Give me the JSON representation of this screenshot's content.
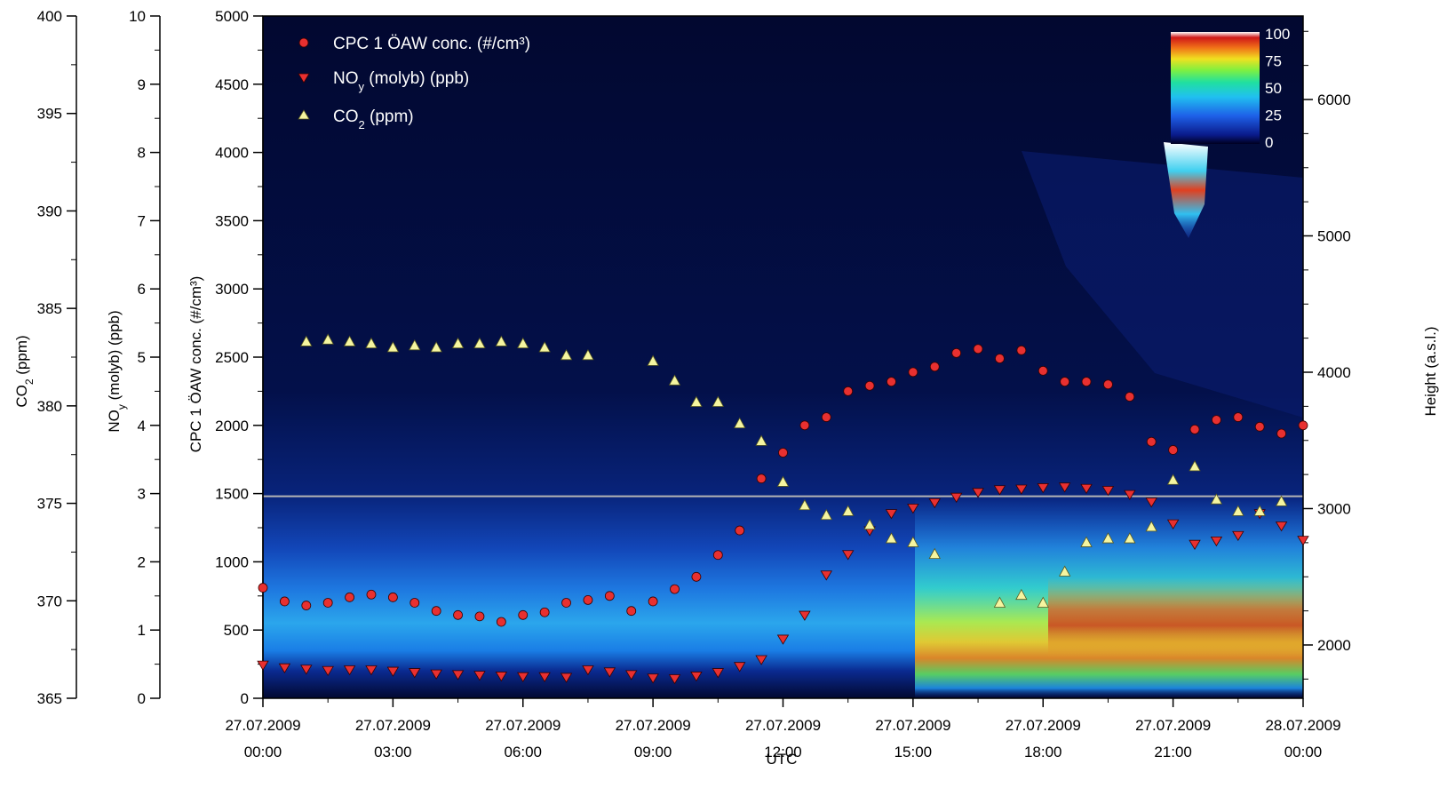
{
  "chart_data": {
    "type": "scatter",
    "x_ticks": [
      {
        "date": "27.07.2009",
        "time": "00:00"
      },
      {
        "date": "27.07.2009",
        "time": "03:00"
      },
      {
        "date": "27.07.2009",
        "time": "06:00"
      },
      {
        "date": "27.07.2009",
        "time": "09:00"
      },
      {
        "date": "27.07.2009",
        "time": "12:00"
      },
      {
        "date": "27.07.2009",
        "time": "15:00"
      },
      {
        "date": "27.07.2009",
        "time": "18:00"
      },
      {
        "date": "27.07.2009",
        "time": "21:00"
      },
      {
        "date": "28.07.2009",
        "time": "00:00"
      }
    ],
    "xlabel": "UTC",
    "x_unit": "hours",
    "xlim": [
      0,
      24
    ],
    "axes": {
      "co2": {
        "label": "CO2 (ppm)",
        "ylim": [
          365,
          400
        ],
        "ticks": [
          365,
          370,
          375,
          380,
          385,
          390,
          395,
          400
        ]
      },
      "noy": {
        "label": "NOy (molyb) (ppb)",
        "ylim": [
          0,
          10
        ],
        "ticks": [
          0,
          1,
          2,
          3,
          4,
          5,
          6,
          7,
          8,
          9,
          10
        ]
      },
      "cpc": {
        "label": "CPC 1 ÖAW conc. (#/cm³)",
        "ylim": [
          0,
          5000
        ],
        "ticks": [
          0,
          500,
          1000,
          1500,
          2000,
          2500,
          3000,
          3500,
          4000,
          4500,
          5000
        ]
      },
      "height": {
        "label": "Height (a.s.l.)",
        "ticks": [
          2000,
          3000,
          4000,
          5000,
          6000
        ]
      }
    },
    "reference_line": {
      "axis": "height",
      "value": 3090
    },
    "legend_position": "top-left",
    "colorbar": {
      "ticks": [
        0,
        25,
        50,
        75,
        100
      ],
      "position": "top-right"
    },
    "series": [
      {
        "name": "CPC 1 ÖAW conc. (#/cm³)",
        "axis": "cpc",
        "marker": "circle",
        "color": "#e83030",
        "x": [
          0,
          0.5,
          1,
          1.5,
          2,
          2.5,
          3,
          3.5,
          4,
          4.5,
          5,
          5.5,
          6,
          6.5,
          7,
          7.5,
          8,
          8.5,
          9,
          9.5,
          10,
          10.5,
          11,
          11.5,
          12,
          12.5,
          13,
          13.5,
          14,
          14.5,
          15,
          15.5,
          16,
          16.5,
          17,
          17.5,
          18,
          18.5,
          19,
          19.5,
          20,
          20.5,
          21,
          21.5,
          22,
          22.5,
          23,
          23.5,
          24
        ],
        "y": [
          810,
          710,
          680,
          700,
          740,
          760,
          740,
          700,
          640,
          610,
          600,
          560,
          610,
          630,
          700,
          720,
          750,
          640,
          710,
          800,
          890,
          1050,
          1230,
          1610,
          1800,
          2000,
          2060,
          2250,
          2290,
          2320,
          2390,
          2430,
          2530,
          2560,
          2490,
          2550,
          2400,
          2320,
          2320,
          2300,
          2210,
          1880,
          1820,
          1970,
          2040,
          2060,
          1990,
          1940,
          2000
        ]
      },
      {
        "name": "NOy (molyb) (ppb)",
        "axis": "noy",
        "marker": "triangle-down",
        "color": "#e83030",
        "x": [
          0,
          0.5,
          1,
          1.5,
          2,
          2.5,
          3,
          3.5,
          4,
          4.5,
          5,
          5.5,
          6,
          6.5,
          7,
          7.5,
          8,
          8.5,
          9,
          9.5,
          10,
          10.5,
          11,
          11.5,
          12,
          12.5,
          13,
          13.5,
          14,
          14.5,
          15,
          15.5,
          16,
          16.5,
          17,
          17.5,
          18,
          18.5,
          19,
          19.5,
          20,
          20.5,
          21,
          21.5,
          22,
          22.5,
          23,
          23.5,
          24
        ],
        "y": [
          0.48,
          0.44,
          0.42,
          0.4,
          0.41,
          0.41,
          0.39,
          0.37,
          0.35,
          0.34,
          0.33,
          0.32,
          0.31,
          0.31,
          0.3,
          0.41,
          0.38,
          0.34,
          0.29,
          0.28,
          0.32,
          0.37,
          0.46,
          0.56,
          0.86,
          1.21,
          1.8,
          2.1,
          2.45,
          2.7,
          2.78,
          2.86,
          2.94,
          3.01,
          3.05,
          3.06,
          3.08,
          3.09,
          3.07,
          3.04,
          2.98,
          2.87,
          2.55,
          2.25,
          2.3,
          2.38,
          2.7,
          2.52,
          2.31
        ]
      },
      {
        "name": "CO2 (ppm)",
        "axis": "co2",
        "marker": "triangle-up",
        "color": "#f5f5a0",
        "x": [
          1,
          1.5,
          2,
          2.5,
          3,
          3.5,
          4,
          4.5,
          5,
          5.5,
          6,
          6.5,
          7,
          7.5,
          9,
          9.5,
          10,
          10.5,
          11,
          11.5,
          12,
          12.5,
          13,
          13.5,
          14,
          14.5,
          15,
          15.5,
          17,
          17.5,
          18,
          18.5,
          19,
          19.5,
          20,
          20.5,
          21,
          21.5,
          22,
          22.5,
          23,
          23.5
        ],
        "y": [
          383.3,
          383.4,
          383.3,
          383.2,
          383.0,
          383.1,
          383.0,
          383.2,
          383.2,
          383.3,
          383.2,
          383.0,
          382.6,
          382.6,
          382.3,
          381.3,
          380.2,
          380.2,
          379.1,
          378.2,
          376.1,
          374.9,
          374.4,
          374.6,
          373.9,
          373.2,
          373.0,
          372.4,
          369.9,
          370.3,
          369.9,
          371.5,
          373.0,
          373.2,
          373.2,
          373.8,
          376.2,
          376.9,
          375.2,
          374.6,
          374.6,
          375.1
        ]
      }
    ]
  },
  "legend": [
    {
      "label": "CPC 1 ÖAW conc. (#/cm³)"
    },
    {
      "label_main": "NO",
      "label_sub": "y",
      "label_rest": " (molyb) (ppb)"
    },
    {
      "label_main": "CO",
      "label_sub": "2",
      "label_rest": " (ppm)"
    }
  ],
  "axis_titles": {
    "co2": {
      "main": "CO",
      "sub": "2",
      "rest": " (ppm)"
    },
    "noy": {
      "main": "NO",
      "sub": "y",
      "rest": " (molyb) (ppb)"
    },
    "cpc": {
      "text": "CPC 1 ÖAW conc. (#/cm³)"
    },
    "height": {
      "text": "Height (a.s.l.)"
    },
    "x": {
      "text": "UTC"
    }
  },
  "colors": {
    "marker_red": "#e83030",
    "marker_yellow": "#f5f5a0",
    "plot_bg": "#030a3c",
    "reference_line": "#b4b4b4"
  }
}
